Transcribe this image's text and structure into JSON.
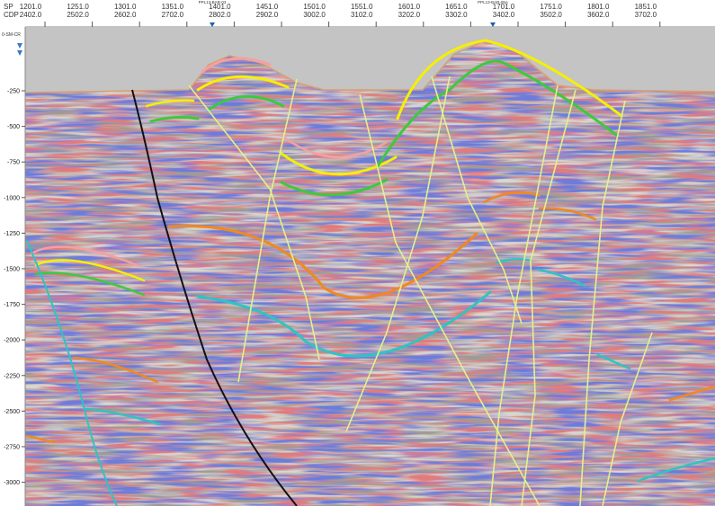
{
  "header": {
    "sp_label": "SP",
    "cdp_label": "CDP",
    "sp": [
      "1201.0",
      "1251.0",
      "1301.0",
      "1351.0",
      "1401.0",
      "1451.0",
      "1501.0",
      "1551.0",
      "1601.0",
      "1651.0",
      "1701.0",
      "1751.0",
      "1801.0",
      "1851.0"
    ],
    "cdp": [
      "2402.0",
      "2502.0",
      "2602.0",
      "2702.0",
      "2802.0",
      "2902.0",
      "3002.0",
      "3102.0",
      "3202.0",
      "3302.0",
      "3402.0",
      "3502.0",
      "3602.0",
      "3702.0"
    ],
    "wells": [
      "PPL13-BAR-03",
      "PPL13-BAR-05A"
    ]
  },
  "depth_axis": {
    "datum": "0-SM-CR",
    "labels": [
      "-250",
      "-500",
      "-750",
      "-1000",
      "-1250",
      "-1500",
      "-1750",
      "-2000",
      "-2250",
      "-2500",
      "-2750",
      "-3000"
    ]
  }
}
